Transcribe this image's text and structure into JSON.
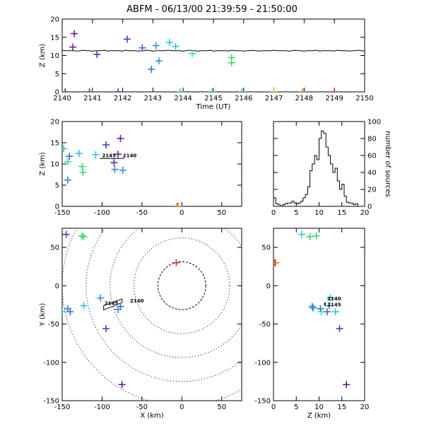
{
  "title": "ABFM - 06/13/00 21:39:59 - 21:50:00",
  "colors": {
    "rangeRing": "#000000",
    "trackLine": "#000000",
    "axes": "#000000"
  },
  "chart_data": [
    {
      "id": "time_height",
      "type": "scatter",
      "xlabel": "Time (UT)",
      "ylabel": "Z (km)",
      "xlim": [
        2140,
        2150
      ],
      "ylim": [
        0,
        20
      ],
      "xticks": [
        2140,
        2141,
        2142,
        2143,
        2144,
        2145,
        2146,
        2147,
        2148,
        2149,
        2150
      ],
      "yticks": [
        0,
        5,
        10,
        15,
        20
      ],
      "points": [
        {
          "x": 2140.1,
          "y": 0,
          "color": "#7a1aa0"
        },
        {
          "x": 2140.4,
          "y": 16,
          "color": "#6a1aa0"
        },
        {
          "x": 2140.35,
          "y": 12.3,
          "color": "#7a1aa0"
        },
        {
          "x": 2140.9,
          "y": 0,
          "color": "#5a2fb5"
        },
        {
          "x": 2141.15,
          "y": 10.3,
          "color": "#5a2fb5"
        },
        {
          "x": 2141.85,
          "y": 0,
          "color": "#2a40d0"
        },
        {
          "x": 2142.15,
          "y": 14.5,
          "color": "#4040d0"
        },
        {
          "x": 2142.65,
          "y": 12.1,
          "color": "#2f6fe0"
        },
        {
          "x": 2142.95,
          "y": 6.2,
          "color": "#2f7fe0"
        },
        {
          "x": 2143.1,
          "y": 12.7,
          "color": "#2f90e0"
        },
        {
          "x": 2143.2,
          "y": 8.5,
          "color": "#2f90e0"
        },
        {
          "x": 2143.55,
          "y": 13.6,
          "color": "#30c0e0"
        },
        {
          "x": 2143.75,
          "y": 12.5,
          "color": "#30c0e0"
        },
        {
          "x": 2143.9,
          "y": 0,
          "color": "#30d0e0"
        },
        {
          "x": 2144.3,
          "y": 10.5,
          "color": "#30e0c0"
        },
        {
          "x": 2144.95,
          "y": 0,
          "color": "#30e090"
        },
        {
          "x": 2145.6,
          "y": 9.4,
          "color": "#30e060"
        },
        {
          "x": 2145.6,
          "y": 8,
          "color": "#30e060"
        },
        {
          "x": 2145.95,
          "y": 0,
          "color": "#40d040"
        },
        {
          "x": 2147.0,
          "y": 0,
          "color": "#e0d020"
        },
        {
          "x": 2147.95,
          "y": 0,
          "color": "#f08020"
        },
        {
          "x": 2149.0,
          "y": 0,
          "color": "#e03020"
        }
      ],
      "reference_line_y": 11.3
    },
    {
      "id": "x_height",
      "type": "scatter",
      "xlabel": "",
      "ylabel": "Z (km)",
      "xlim": [
        -150,
        75
      ],
      "ylim": [
        0,
        20
      ],
      "xticks": [
        -150,
        -100,
        -50,
        0,
        50
      ],
      "yticks": [
        0,
        5,
        10,
        15,
        20
      ],
      "points": [
        {
          "x": -148,
          "y": 13.6,
          "color": "#30c0e0"
        },
        {
          "x": -143,
          "y": 6.2,
          "color": "#2f7fe0"
        },
        {
          "x": -143,
          "y": 10.5,
          "color": "#30e0c0"
        },
        {
          "x": -141,
          "y": 11.8,
          "color": "#2f6fe0"
        },
        {
          "x": -129,
          "y": 12.5,
          "color": "#30c0e0"
        },
        {
          "x": -125,
          "y": 9.4,
          "color": "#30e060"
        },
        {
          "x": -124,
          "y": 8,
          "color": "#30e060"
        },
        {
          "x": -108,
          "y": 12.2,
          "color": "#30c0e0"
        },
        {
          "x": -95,
          "y": 14.5,
          "color": "#4040d0"
        },
        {
          "x": -85,
          "y": 10.3,
          "color": "#5a2fb5"
        },
        {
          "x": -84,
          "y": 8.7,
          "color": "#2f90e0"
        },
        {
          "x": -80,
          "y": 12.3,
          "color": "#7a1aa0"
        },
        {
          "x": -77,
          "y": 16,
          "color": "#6a1aa0"
        },
        {
          "x": -74,
          "y": 8.5,
          "color": "#2f90e0"
        },
        {
          "x": -6,
          "y": 0,
          "color": "#e03020"
        },
        {
          "x": -5,
          "y": 0,
          "color": "#f08020"
        },
        {
          "x": -4,
          "y": 0,
          "color": "#e0d020"
        }
      ],
      "track": [
        [
          -103,
          11.3
        ],
        [
          -72,
          11.3
        ]
      ],
      "annotations": [
        {
          "text": "2145",
          "x": -100,
          "y": 11.6
        },
        {
          "text": "2140",
          "x": -74,
          "y": 11.6
        }
      ]
    },
    {
      "id": "histogram",
      "type": "bar",
      "xlabel": "",
      "ylabel": "number of sources",
      "ylabel_side": "right",
      "xlim": [
        0,
        20
      ],
      "ylim": [
        0,
        100
      ],
      "xticks": [
        0,
        5,
        10,
        15,
        20
      ],
      "yticks": [
        0,
        20,
        40,
        60,
        80,
        100
      ],
      "bin_width": 0.5,
      "bin_start": 0,
      "values": [
        10,
        3,
        2,
        0,
        2,
        3,
        4,
        4,
        6,
        4,
        3,
        4,
        6,
        10,
        14,
        23,
        42,
        50,
        60,
        55,
        80,
        89,
        86,
        70,
        60,
        50,
        40,
        45,
        30,
        20,
        26,
        12,
        5,
        4,
        4,
        2,
        3,
        0,
        0,
        0
      ]
    },
    {
      "id": "plan_view",
      "type": "scatter",
      "xlabel": "X (km)",
      "ylabel": "Y (km)",
      "xlim": [
        -150,
        75
      ],
      "ylim": [
        -150,
        75
      ],
      "xticks": [
        -150,
        -100,
        -50,
        0,
        50
      ],
      "yticks": [
        -150,
        -100,
        -50,
        0,
        50
      ],
      "range_rings_km": [
        30,
        60,
        90,
        120,
        150
      ],
      "points": [
        {
          "x": -145,
          "y": 67,
          "color": "#4040d0"
        },
        {
          "x": -125,
          "y": 65,
          "color": "#30e060"
        },
        {
          "x": -123,
          "y": 64,
          "color": "#30e060"
        },
        {
          "x": -150,
          "y": -34,
          "color": "#30c0e0"
        },
        {
          "x": -143,
          "y": -30,
          "color": "#2f7fe0"
        },
        {
          "x": -140,
          "y": -34,
          "color": "#2f6fe0"
        },
        {
          "x": -123,
          "y": -26,
          "color": "#30c0e0"
        },
        {
          "x": -102,
          "y": -16,
          "color": "#2f90e0"
        },
        {
          "x": -80,
          "y": -31,
          "color": "#2f90e0"
        },
        {
          "x": -77,
          "y": -27,
          "color": "#2f6fe0"
        },
        {
          "x": -95,
          "y": -56,
          "color": "#4040d0"
        },
        {
          "x": -75,
          "y": -129,
          "color": "#6a1aa0"
        },
        {
          "x": -7,
          "y": 30,
          "color": "#e03020"
        }
      ],
      "track": [
        [
          -98,
          -26
        ],
        [
          -75,
          -22
        ]
      ],
      "annotations": [
        {
          "text": "2145",
          "x": -97,
          "y": -25
        },
        {
          "text": "2140",
          "x": -65,
          "y": -22
        }
      ]
    },
    {
      "id": "z_y",
      "type": "scatter",
      "xlabel": "Z (km)",
      "ylabel": "",
      "xlim": [
        0,
        20
      ],
      "ylim": [
        -150,
        75
      ],
      "xticks": [
        0,
        5,
        10,
        15,
        20
      ],
      "yticks": [
        -150,
        -100,
        -50,
        0,
        50
      ],
      "points": [
        {
          "x": 6.2,
          "y": 67,
          "color": "#30c0e0"
        },
        {
          "x": 8,
          "y": 64,
          "color": "#30e060"
        },
        {
          "x": 9.4,
          "y": 65,
          "color": "#30e060"
        },
        {
          "x": 0.3,
          "y": 30,
          "color": "#e03020"
        },
        {
          "x": 0.5,
          "y": 30,
          "color": "#f08020"
        },
        {
          "x": 8.5,
          "y": -27,
          "color": "#2f7fe0"
        },
        {
          "x": 8.7,
          "y": -29,
          "color": "#2f90e0"
        },
        {
          "x": 10.3,
          "y": -30,
          "color": "#2f6fe0"
        },
        {
          "x": 10.5,
          "y": -34,
          "color": "#30e0c0"
        },
        {
          "x": 11.8,
          "y": -34,
          "color": "#2f6fe0"
        },
        {
          "x": 12.5,
          "y": -16,
          "color": "#30c0e0"
        },
        {
          "x": 13.6,
          "y": -34,
          "color": "#30c0e0"
        },
        {
          "x": 12.2,
          "y": -26,
          "color": "#2f90e0"
        },
        {
          "x": 14.5,
          "y": -56,
          "color": "#4040d0"
        },
        {
          "x": 16,
          "y": -129,
          "color": "#6a1aa0"
        }
      ],
      "track": [
        [
          11.3,
          -22
        ],
        [
          11.3,
          -26
        ]
      ],
      "annotations": [
        {
          "text": "2140",
          "x": 11.8,
          "y": -19
        },
        {
          "text": "2145",
          "x": 11.8,
          "y": -27
        }
      ]
    }
  ]
}
